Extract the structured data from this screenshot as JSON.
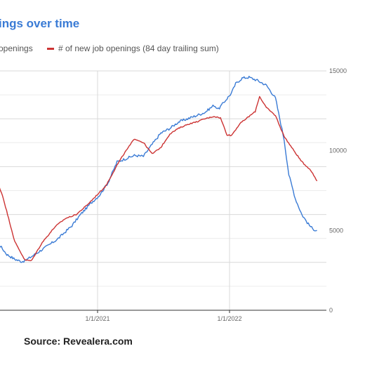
{
  "title": "ings over time",
  "source": "Source: Revealera.com",
  "chart_data": {
    "type": "line",
    "title": "ings over time",
    "xlabel": "",
    "ylabel": "",
    "y_axis_side": "right",
    "ylim": [
      0,
      15000
    ],
    "y_ticks": [
      0,
      5000,
      10000,
      15000
    ],
    "x_tick_labels": [
      "1/1/2021",
      "1/1/2022"
    ],
    "x_tick_dates": [
      "2021-01-01",
      "2022-01-01"
    ],
    "xlim": [
      "2020-03-09",
      "2022-08-31"
    ],
    "grid": true,
    "legend_position": "top",
    "series": [
      {
        "name": "openings",
        "color": "#3a7bd5",
        "x": [
          "2020-03-09",
          "2020-04-01",
          "2020-04-25",
          "2020-05-17",
          "2020-06-05",
          "2020-06-14",
          "2020-07-08",
          "2020-08-07",
          "2020-09-12",
          "2020-10-22",
          "2020-11-15",
          "2020-12-13",
          "2021-01-06",
          "2021-01-30",
          "2021-02-24",
          "2021-03-20",
          "2021-04-13",
          "2021-05-08",
          "2021-06-01",
          "2021-06-25",
          "2021-07-20",
          "2021-08-13",
          "2021-09-07",
          "2021-10-01",
          "2021-10-25",
          "2021-11-19",
          "2021-12-01",
          "2021-12-19",
          "2022-01-06",
          "2022-01-18",
          "2022-02-05",
          "2022-02-24",
          "2022-03-19",
          "2022-04-13",
          "2022-05-08",
          "2022-06-01",
          "2022-06-14",
          "2022-07-02",
          "2022-07-20",
          "2022-08-07",
          "2022-08-19",
          "2022-08-31"
        ],
        "values": [
          9100,
          4200,
          3500,
          3200,
          3050,
          3100,
          3450,
          3900,
          4450,
          5300,
          6000,
          6700,
          7200,
          8000,
          9300,
          9500,
          9700,
          9650,
          10400,
          11100,
          11400,
          11800,
          12000,
          12200,
          12400,
          12850,
          12600,
          13100,
          13600,
          14200,
          14550,
          14600,
          14400,
          14100,
          13300,
          10700,
          8500,
          7000,
          6000,
          5400,
          5100,
          5000
        ]
      },
      {
        "name": "# of new job openings (84 day trailing sum)",
        "color": "#cc3333",
        "x": [
          "2020-03-09",
          "2020-04-13",
          "2020-05-17",
          "2020-06-14",
          "2020-07-02",
          "2020-08-01",
          "2020-09-06",
          "2020-10-04",
          "2020-11-03",
          "2020-12-01",
          "2020-12-25",
          "2021-01-24",
          "2021-02-24",
          "2021-03-15",
          "2021-04-13",
          "2021-05-08",
          "2021-06-01",
          "2021-06-25",
          "2021-07-20",
          "2021-08-13",
          "2021-09-07",
          "2021-10-01",
          "2021-10-25",
          "2021-11-19",
          "2021-12-07",
          "2021-12-25",
          "2022-01-06",
          "2022-01-30",
          "2022-02-24",
          "2022-03-13",
          "2022-03-25",
          "2022-04-13",
          "2022-05-08",
          "2022-06-01",
          "2022-06-25",
          "2022-07-20",
          "2022-08-13",
          "2022-08-31"
        ],
        "values": [
          9300,
          7200,
          4300,
          3150,
          3100,
          4250,
          5250,
          5750,
          6000,
          6550,
          7100,
          7800,
          9100,
          9800,
          10750,
          10500,
          9800,
          10200,
          11050,
          11400,
          11650,
          11800,
          12000,
          12150,
          12050,
          11000,
          10950,
          11700,
          12150,
          12450,
          13400,
          12700,
          12200,
          10900,
          10100,
          9300,
          8800,
          8100
        ]
      }
    ]
  }
}
